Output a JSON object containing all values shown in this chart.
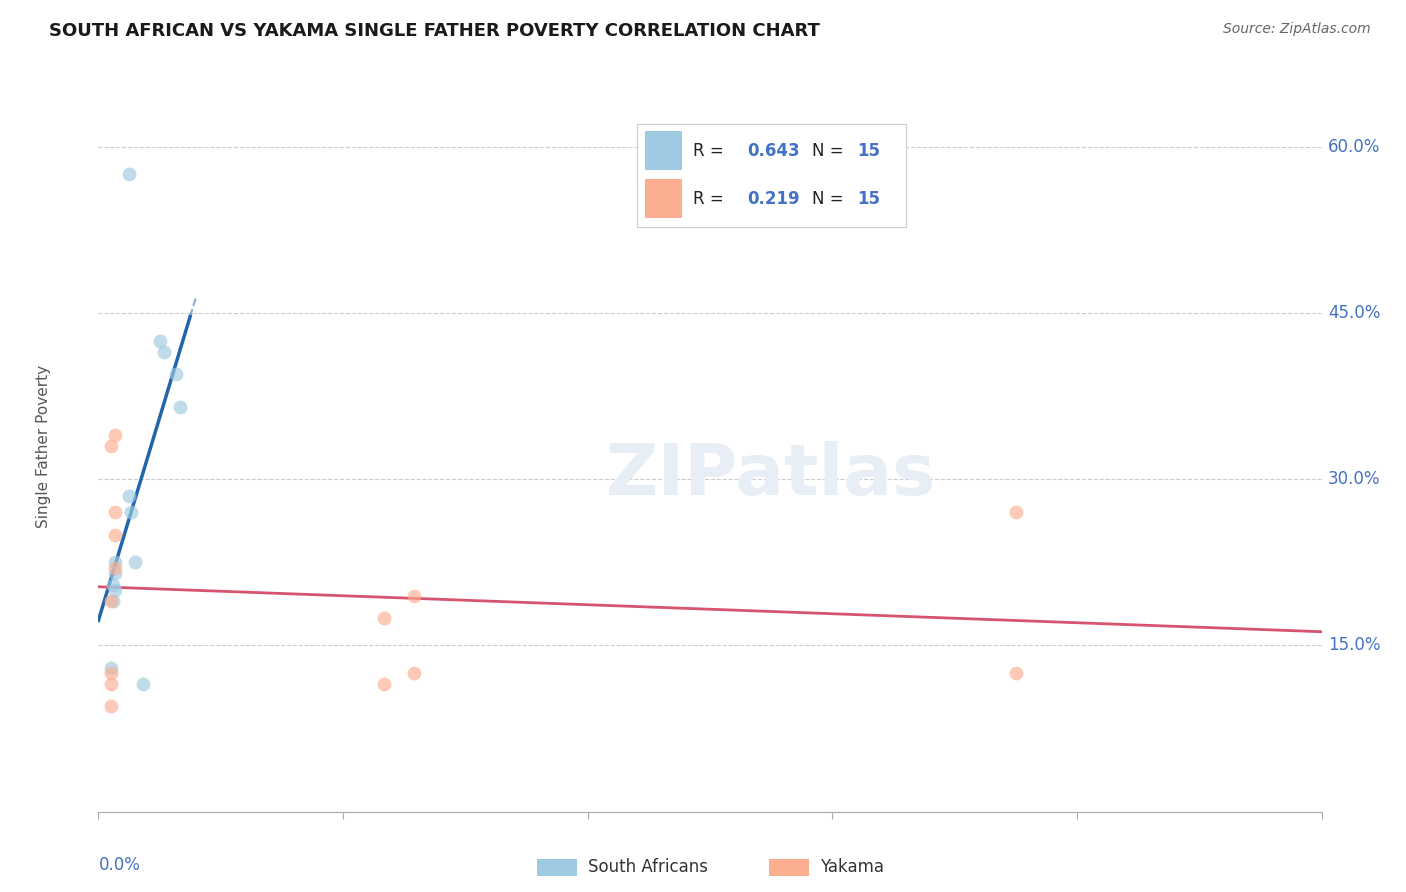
{
  "title": "SOUTH AFRICAN VS YAKAMA SINGLE FATHER POVERTY CORRELATION CHART",
  "source": "Source: ZipAtlas.com",
  "ylabel": "Single Father Poverty",
  "ytick_labels": [
    "60.0%",
    "45.0%",
    "30.0%",
    "15.0%"
  ],
  "ytick_values": [
    0.6,
    0.45,
    0.3,
    0.15
  ],
  "xlim": [
    0.0,
    0.6
  ],
  "ylim": [
    0.0,
    0.66
  ],
  "background_color": "#ffffff",
  "grid_color": "#cccccc",
  "legend_R_blue": "0.643",
  "legend_N_blue": "15",
  "legend_R_pink": "0.219",
  "legend_N_pink": "15",
  "south_africans_x": [
    0.015,
    0.03,
    0.032,
    0.038,
    0.04,
    0.015,
    0.016,
    0.008,
    0.018,
    0.008,
    0.007,
    0.008,
    0.007,
    0.006,
    0.022
  ],
  "south_africans_y": [
    0.575,
    0.425,
    0.415,
    0.395,
    0.365,
    0.285,
    0.27,
    0.225,
    0.225,
    0.215,
    0.205,
    0.2,
    0.19,
    0.13,
    0.115
  ],
  "yakama_x": [
    0.008,
    0.008,
    0.008,
    0.006,
    0.006,
    0.14,
    0.155,
    0.155,
    0.14,
    0.45,
    0.45,
    0.008,
    0.006,
    0.006,
    0.006
  ],
  "yakama_y": [
    0.34,
    0.27,
    0.25,
    0.33,
    0.19,
    0.175,
    0.195,
    0.125,
    0.115,
    0.27,
    0.125,
    0.22,
    0.125,
    0.115,
    0.095
  ],
  "blue_color": "#9ecae1",
  "pink_color": "#fcae91",
  "blue_line_color": "#2166ac",
  "pink_line_color": "#d6546e",
  "marker_size": 100,
  "marker_alpha": 0.65,
  "axis_color": "#4472C4",
  "label_color": "#555555"
}
